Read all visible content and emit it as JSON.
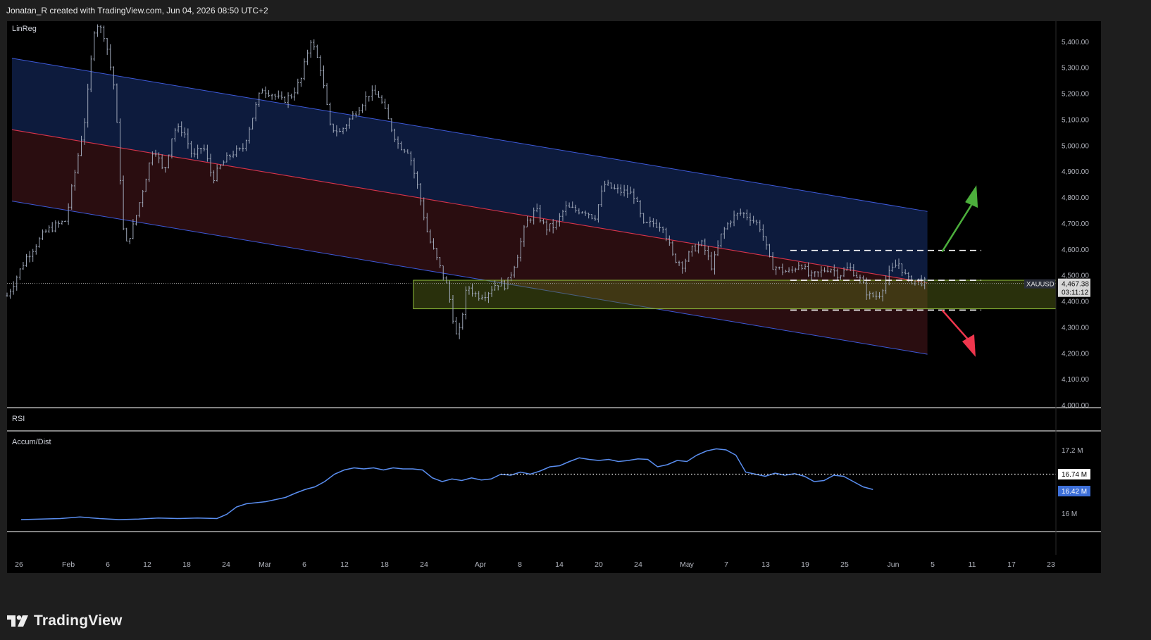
{
  "header": {
    "attribution": "Jonatan_R created with TradingView.com, Jun 04, 2026 08:50 UTC+2"
  },
  "footer": {
    "brand": "TradingView"
  },
  "panes": {
    "price": "LinReg",
    "rsi": "RSI",
    "ad": "Accum/Dist"
  },
  "symbol": {
    "name": "XAUUSD",
    "price": "4,467.38",
    "countdown": "03:11:12"
  },
  "ad_axis": {
    "ticks": [
      "17.2 M",
      "16 M"
    ],
    "ref_label": "16.74 M",
    "cur_label": "16.42 M"
  },
  "colors": {
    "background": "#000000",
    "candle": "#9ea7b8",
    "channel_line": "#3d59d8",
    "midline": "#d9344b",
    "upper_fill": "#0d1b3d",
    "lower_fill": "#2a0d10",
    "zone_fill": "#5a6a1a",
    "zone_border": "#8fbe3a",
    "ad_line": "#5a8ef0",
    "arrow_up": "#4caf3c",
    "arrow_down": "#f0364d"
  },
  "chart_data": {
    "type": "candlestick",
    "symbol": "XAUUSD",
    "ylim": [
      4000,
      5500
    ],
    "y_ticks": [
      "4,000.00",
      "4,100.00",
      "4,200.00",
      "4,300.00",
      "4,400.00",
      "4,500.00",
      "4,600.00",
      "4,700.00",
      "4,800.00",
      "4,900.00",
      "5,000.00",
      "5,100.00",
      "5,200.00",
      "5,300.00",
      "5,400.00"
    ],
    "x_ticks": [
      "26",
      "Feb",
      "6",
      "12",
      "18",
      "24",
      "Mar",
      "6",
      "12",
      "18",
      "24",
      "Apr",
      "8",
      "14",
      "20",
      "24",
      "May",
      "7",
      "13",
      "19",
      "25",
      "Jun",
      "5",
      "11",
      "17",
      "23"
    ],
    "close_path": [
      [
        0,
        4420
      ],
      [
        2,
        4570
      ],
      [
        4,
        4670
      ],
      [
        6,
        4710
      ],
      [
        8,
        5110
      ],
      [
        9,
        5480
      ],
      [
        10,
        5420
      ],
      [
        11,
        5210
      ],
      [
        12,
        4600
      ],
      [
        13,
        4700
      ],
      [
        14,
        4850
      ],
      [
        15,
        5000
      ],
      [
        16,
        4890
      ],
      [
        17,
        5060
      ],
      [
        18,
        5060
      ],
      [
        19,
        4950
      ],
      [
        20,
        5000
      ],
      [
        21,
        4870
      ],
      [
        22,
        4930
      ],
      [
        23,
        4970
      ],
      [
        24,
        4980
      ],
      [
        25,
        5100
      ],
      [
        26,
        5220
      ],
      [
        27,
        5200
      ],
      [
        28,
        5170
      ],
      [
        29,
        5190
      ],
      [
        30,
        5250
      ],
      [
        31,
        5410
      ],
      [
        32,
        5300
      ],
      [
        33,
        5070
      ],
      [
        34,
        5050
      ],
      [
        35,
        5100
      ],
      [
        36,
        5150
      ],
      [
        37,
        5200
      ],
      [
        38,
        5190
      ],
      [
        39,
        5090
      ],
      [
        40,
        5000
      ],
      [
        41,
        4980
      ],
      [
        42,
        4830
      ],
      [
        43,
        4650
      ],
      [
        44,
        4550
      ],
      [
        45,
        4450
      ],
      [
        46,
        4240
      ],
      [
        47,
        4460
      ],
      [
        48,
        4420
      ],
      [
        49,
        4430
      ],
      [
        50,
        4470
      ],
      [
        51,
        4460
      ],
      [
        52,
        4560
      ],
      [
        53,
        4700
      ],
      [
        54,
        4750
      ],
      [
        55,
        4680
      ],
      [
        56,
        4690
      ],
      [
        57,
        4760
      ],
      [
        58,
        4750
      ],
      [
        59,
        4750
      ],
      [
        60,
        4720
      ],
      [
        61,
        4850
      ],
      [
        62,
        4830
      ],
      [
        63,
        4820
      ],
      [
        64,
        4810
      ],
      [
        65,
        4690
      ],
      [
        66,
        4700
      ],
      [
        67,
        4690
      ],
      [
        68,
        4570
      ],
      [
        69,
        4540
      ],
      [
        70,
        4600
      ],
      [
        71,
        4620
      ],
      [
        72,
        4530
      ],
      [
        73,
        4660
      ],
      [
        74,
        4720
      ],
      [
        75,
        4740
      ],
      [
        76,
        4720
      ],
      [
        77,
        4680
      ],
      [
        78,
        4540
      ],
      [
        79,
        4520
      ],
      [
        80,
        4510
      ],
      [
        81,
        4550
      ],
      [
        82,
        4490
      ],
      [
        83,
        4510
      ],
      [
        84,
        4530
      ],
      [
        85,
        4500
      ],
      [
        86,
        4530
      ],
      [
        87,
        4490
      ],
      [
        88,
        4420
      ],
      [
        89,
        4420
      ],
      [
        90,
        4500
      ],
      [
        91,
        4550
      ],
      [
        92,
        4480
      ],
      [
        93,
        4480
      ],
      [
        94,
        4467
      ]
    ],
    "x_range": [
      0,
      130
    ],
    "linreg_channel": {
      "start": [
        0.5,
        5060
      ],
      "end": [
        94,
        4470
      ],
      "offset": 275
    },
    "zone": [
      4370,
      4480
    ],
    "dashed_levels": [
      4595,
      4480,
      4365
    ],
    "ad_series": [
      [
        0,
        15.88
      ],
      [
        4,
        15.9
      ],
      [
        6,
        15.93
      ],
      [
        8,
        15.9
      ],
      [
        10,
        15.88
      ],
      [
        12,
        15.89
      ],
      [
        14,
        15.91
      ],
      [
        16,
        15.9
      ],
      [
        18,
        15.91
      ],
      [
        20,
        15.9
      ],
      [
        21,
        15.98
      ],
      [
        22,
        16.12
      ],
      [
        23,
        16.18
      ],
      [
        24,
        16.2
      ],
      [
        25,
        16.22
      ],
      [
        26,
        16.26
      ],
      [
        27,
        16.3
      ],
      [
        28,
        16.38
      ],
      [
        29,
        16.45
      ],
      [
        30,
        16.5
      ],
      [
        31,
        16.6
      ],
      [
        32,
        16.74
      ],
      [
        33,
        16.82
      ],
      [
        34,
        16.86
      ],
      [
        35,
        16.84
      ],
      [
        36,
        16.86
      ],
      [
        37,
        16.82
      ],
      [
        38,
        16.86
      ],
      [
        39,
        16.84
      ],
      [
        40,
        16.84
      ],
      [
        41,
        16.82
      ],
      [
        42,
        16.67
      ],
      [
        43,
        16.6
      ],
      [
        44,
        16.65
      ],
      [
        45,
        16.62
      ],
      [
        46,
        16.67
      ],
      [
        47,
        16.63
      ],
      [
        48,
        16.65
      ],
      [
        49,
        16.74
      ],
      [
        50,
        16.72
      ],
      [
        51,
        16.78
      ],
      [
        52,
        16.74
      ],
      [
        53,
        16.8
      ],
      [
        54,
        16.88
      ],
      [
        55,
        16.9
      ],
      [
        56,
        16.98
      ],
      [
        57,
        17.05
      ],
      [
        58,
        17.02
      ],
      [
        59,
        17.0
      ],
      [
        60,
        17.02
      ],
      [
        61,
        16.98
      ],
      [
        62,
        17.0
      ],
      [
        63,
        17.03
      ],
      [
        64,
        17.02
      ],
      [
        65,
        16.88
      ],
      [
        66,
        16.92
      ],
      [
        67,
        17.0
      ],
      [
        68,
        16.98
      ],
      [
        69,
        17.1
      ],
      [
        70,
        17.18
      ],
      [
        71,
        17.22
      ],
      [
        72,
        17.2
      ],
      [
        73,
        17.1
      ],
      [
        74,
        16.78
      ],
      [
        75,
        16.74
      ],
      [
        76,
        16.7
      ],
      [
        77,
        16.76
      ],
      [
        78,
        16.72
      ],
      [
        79,
        16.75
      ],
      [
        80,
        16.7
      ],
      [
        81,
        16.6
      ],
      [
        82,
        16.62
      ],
      [
        83,
        16.72
      ],
      [
        84,
        16.7
      ],
      [
        85,
        16.6
      ],
      [
        86,
        16.5
      ],
      [
        87,
        16.45
      ]
    ]
  }
}
